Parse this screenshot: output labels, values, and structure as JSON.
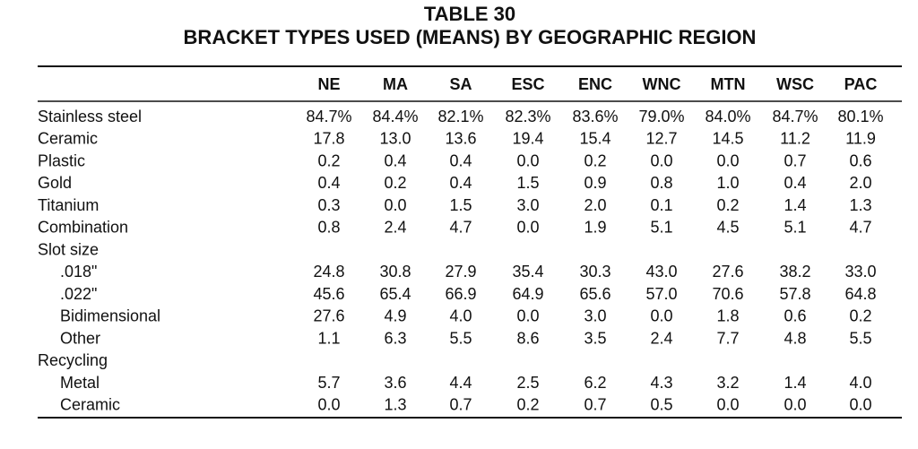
{
  "title": "TABLE 30",
  "subtitle": "BRACKET TYPES USED (MEANS) BY GEOGRAPHIC REGION",
  "table": {
    "columns": [
      "NE",
      "MA",
      "SA",
      "ESC",
      "ENC",
      "WNC",
      "MTN",
      "WSC",
      "PAC"
    ],
    "rows": [
      {
        "label": "Stainless steel",
        "values": [
          "84.7%",
          "84.4%",
          "82.1%",
          "82.3%",
          "83.6%",
          "79.0%",
          "84.0%",
          "84.7%",
          "80.1%"
        ]
      },
      {
        "label": "Ceramic",
        "values": [
          "17.8",
          "13.0",
          "13.6",
          "19.4",
          "15.4",
          "12.7",
          "14.5",
          "11.2",
          "11.9"
        ]
      },
      {
        "label": "Plastic",
        "values": [
          "0.2",
          "0.4",
          "0.4",
          "0.0",
          "0.2",
          "0.0",
          "0.0",
          "0.7",
          "0.6"
        ]
      },
      {
        "label": "Gold",
        "values": [
          "0.4",
          "0.2",
          "0.4",
          "1.5",
          "0.9",
          "0.8",
          "1.0",
          "0.4",
          "2.0"
        ]
      },
      {
        "label": "Titanium",
        "values": [
          "0.3",
          "0.0",
          "1.5",
          "3.0",
          "2.0",
          "0.1",
          "0.2",
          "1.4",
          "1.3"
        ]
      },
      {
        "label": "Combination",
        "values": [
          "0.8",
          "2.4",
          "4.7",
          "0.0",
          "1.9",
          "5.1",
          "4.5",
          "5.1",
          "4.7"
        ]
      },
      {
        "label": "Slot size",
        "items": [
          {
            "label": ".018\"",
            "values": [
              "24.8",
              "30.8",
              "27.9",
              "35.4",
              "30.3",
              "43.0",
              "27.6",
              "38.2",
              "33.0"
            ]
          },
          {
            "label": ".022\"",
            "values": [
              "45.6",
              "65.4",
              "66.9",
              "64.9",
              "65.6",
              "57.0",
              "70.6",
              "57.8",
              "64.8"
            ]
          },
          {
            "label": "Bidimensional",
            "values": [
              "27.6",
              "4.9",
              "4.0",
              "0.0",
              "3.0",
              "0.0",
              "1.8",
              "0.6",
              "0.2"
            ]
          },
          {
            "label": "Other",
            "values": [
              "1.1",
              "6.3",
              "5.5",
              "8.6",
              "3.5",
              "2.4",
              "7.7",
              "4.8",
              "5.5"
            ]
          }
        ]
      },
      {
        "label": "Recycling",
        "items": [
          {
            "label": "Metal",
            "values": [
              "5.7",
              "3.6",
              "4.4",
              "2.5",
              "6.2",
              "4.3",
              "3.2",
              "1.4",
              "4.0"
            ]
          },
          {
            "label": "Ceramic",
            "values": [
              "0.0",
              "1.3",
              "0.7",
              "0.2",
              "0.7",
              "0.5",
              "0.0",
              "0.0",
              "0.0"
            ]
          }
        ]
      }
    ]
  }
}
